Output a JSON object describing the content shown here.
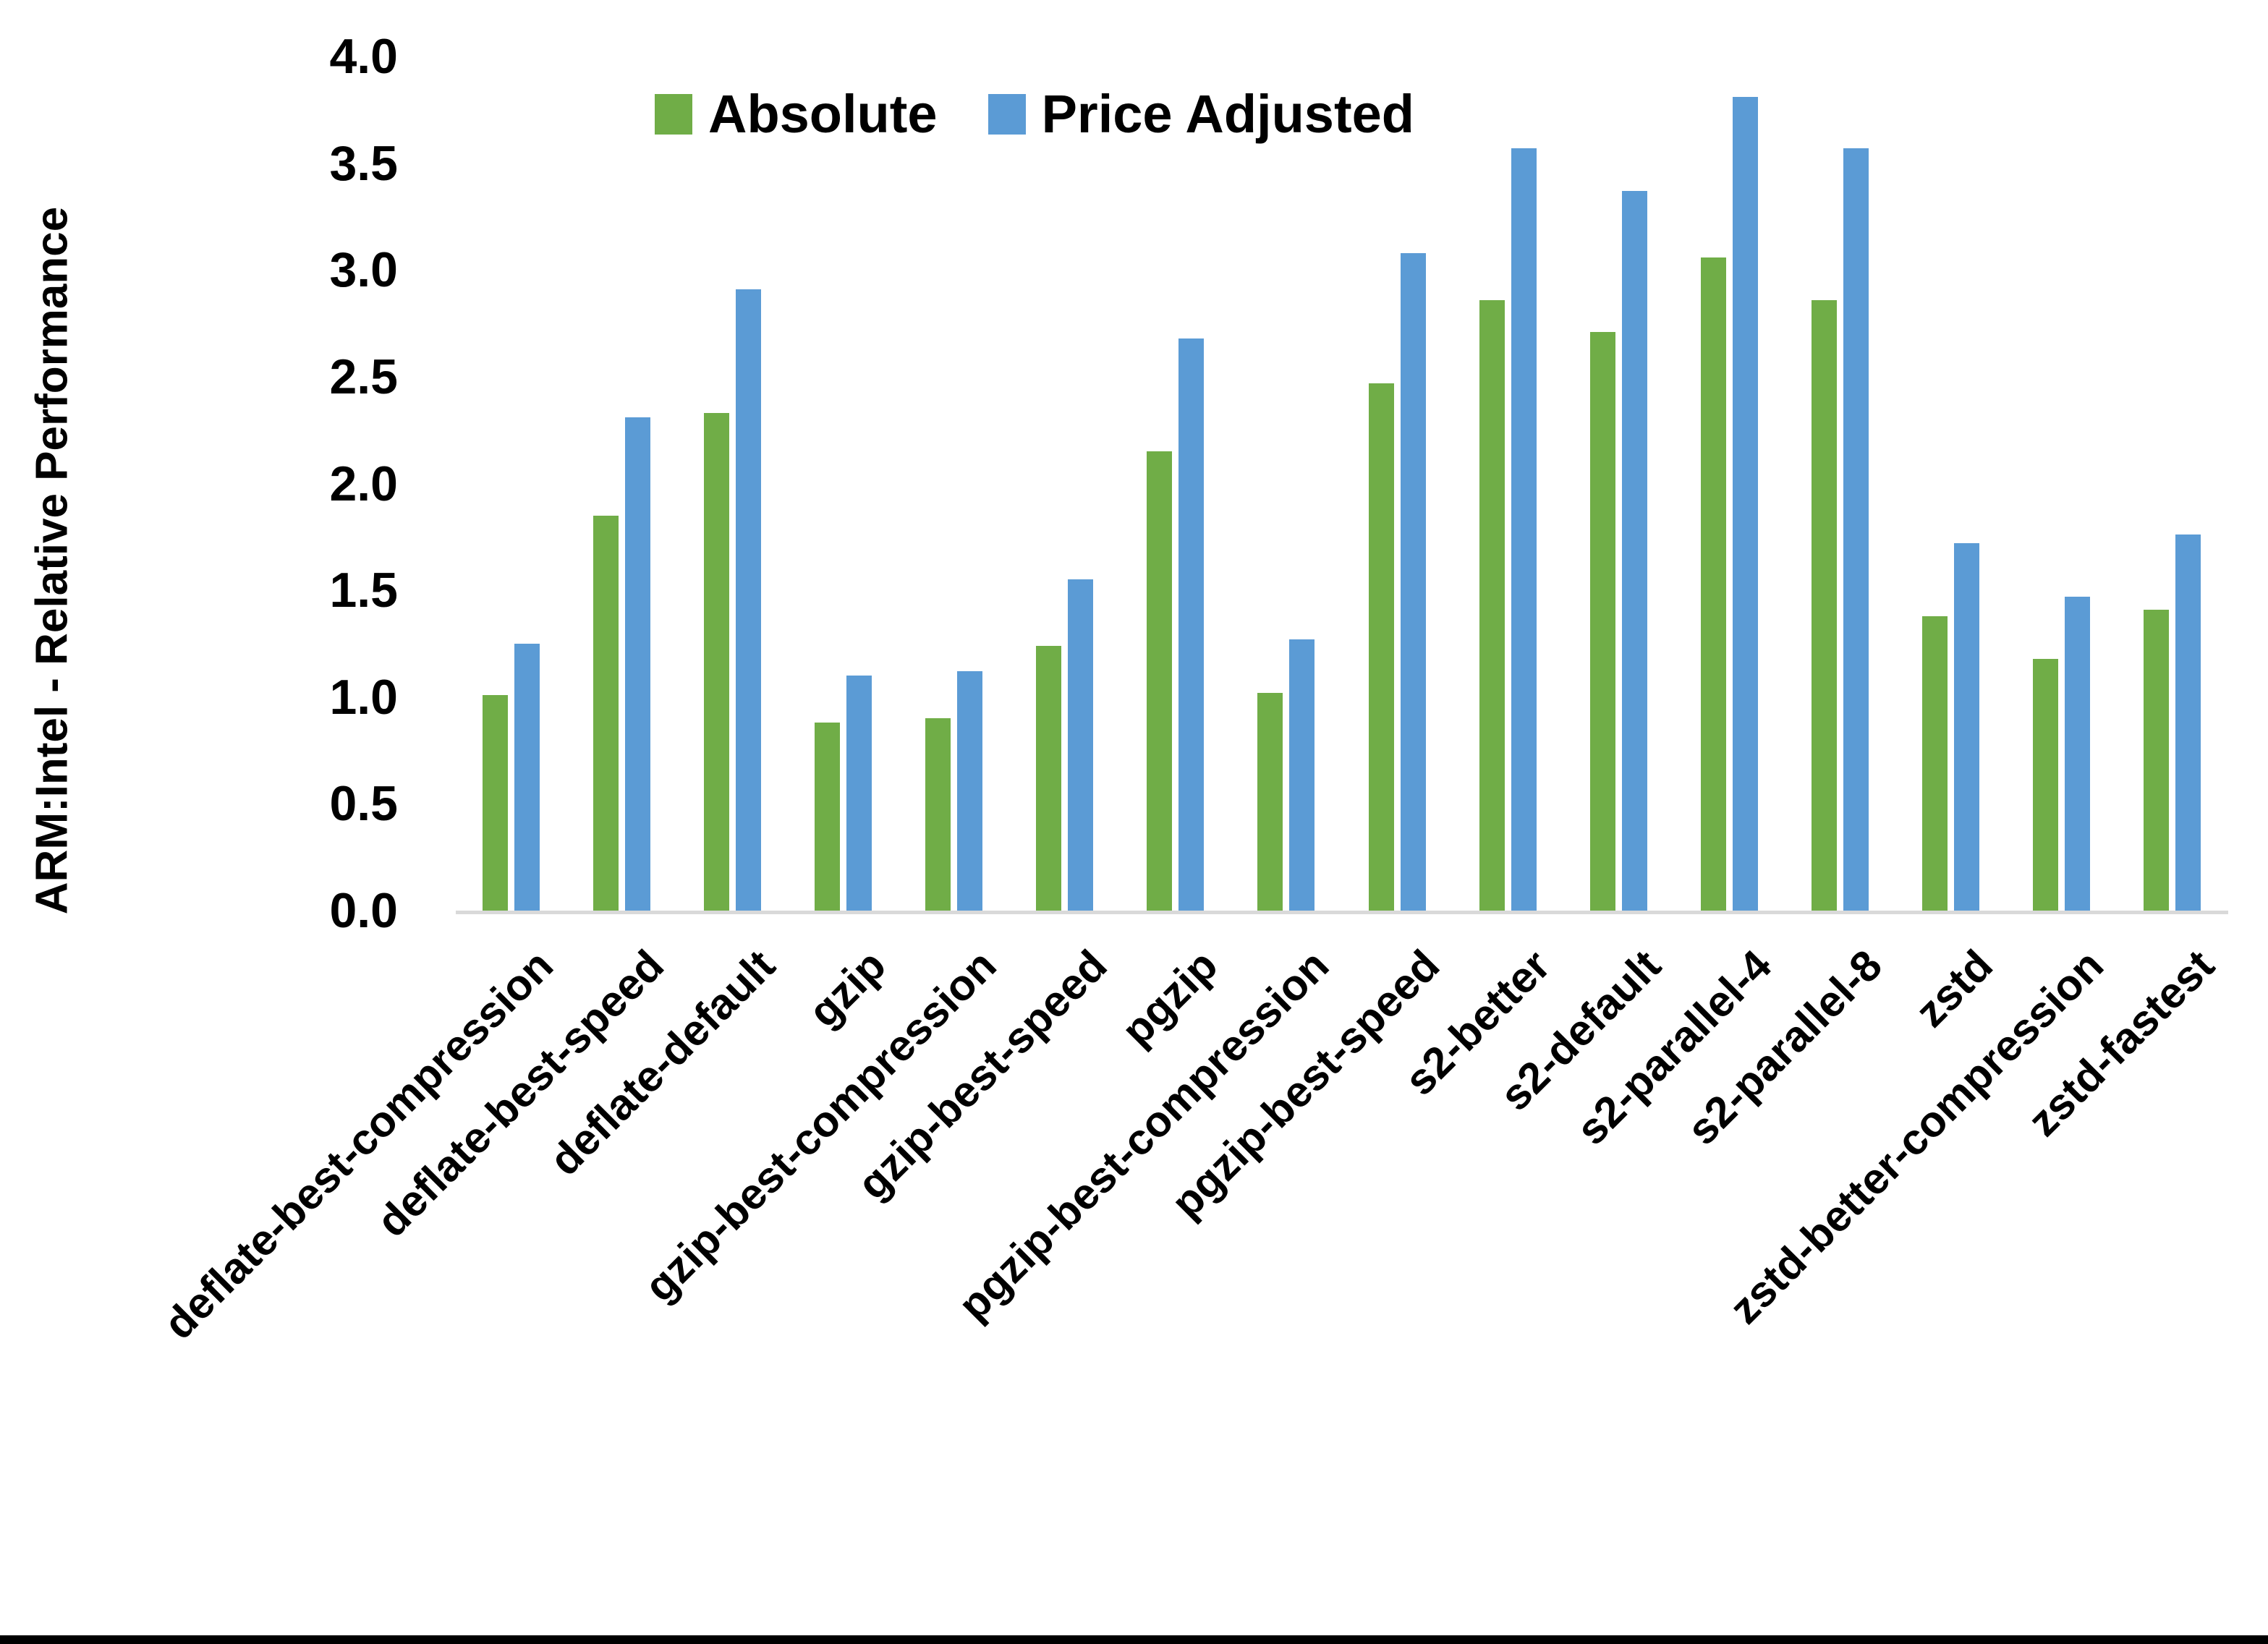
{
  "chart_data": {
    "type": "bar",
    "title": "",
    "ylabel": "ARM:Intel - Relative Performance",
    "xlabel": "",
    "ylim": [
      0,
      4.0
    ],
    "ytick_step": 0.5,
    "ytick_format_decimals": 1,
    "grid": false,
    "legend_position": "top-center-inside",
    "background": "#FFFFFF",
    "text_color": "#000000",
    "axis_line_color": "#D9D9D9",
    "categories": [
      "deflate-best-compression",
      "deflate-best-speed",
      "deflate-default",
      "gzip",
      "gzip-best-compression",
      "gzip-best-speed",
      "pgzip",
      "pgzip-best-compression",
      "pgzip-best-speed",
      "s2-better",
      "s2-default",
      "s2-parallel-4",
      "s2-parallel-8",
      "zstd",
      "zstd-better-compression",
      "zstd-fastest"
    ],
    "series": [
      {
        "name": "Absolute",
        "color": "#70AD47",
        "values": [
          1.01,
          1.85,
          2.33,
          0.88,
          0.9,
          1.24,
          2.15,
          1.02,
          2.47,
          2.86,
          2.71,
          3.06,
          2.86,
          1.38,
          1.18,
          1.41
        ]
      },
      {
        "name": "Price Adjusted",
        "color": "#5B9BD5",
        "values": [
          1.25,
          2.31,
          2.91,
          1.1,
          1.12,
          1.55,
          2.68,
          1.27,
          3.08,
          3.57,
          3.37,
          3.81,
          3.57,
          1.72,
          1.47,
          1.76
        ]
      }
    ]
  }
}
